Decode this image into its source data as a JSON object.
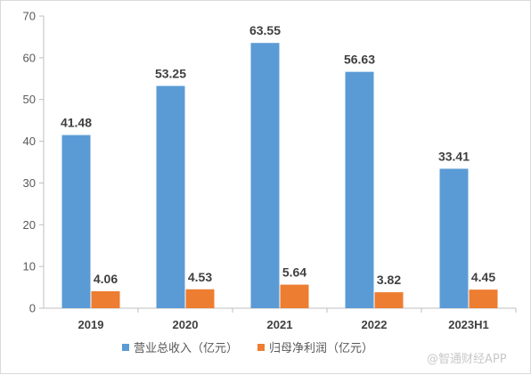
{
  "chart_data": {
    "type": "bar",
    "categories": [
      "2019",
      "2020",
      "2021",
      "2022",
      "2023H1"
    ],
    "series": [
      {
        "name": "营业总收入（亿元）",
        "values": [
          41.48,
          53.25,
          63.55,
          56.63,
          33.41
        ],
        "color": "#5B9BD5"
      },
      {
        "name": "归母净利润（亿元）",
        "values": [
          4.06,
          4.53,
          5.64,
          3.82,
          4.45
        ],
        "color": "#ED7D31"
      }
    ],
    "ylim": [
      0,
      70
    ],
    "yticks": [
      0,
      10,
      20,
      30,
      40,
      50,
      60,
      70
    ],
    "grid": false,
    "legend_position": "bottom",
    "data_labels": true
  },
  "watermark": "@智通财经APP"
}
